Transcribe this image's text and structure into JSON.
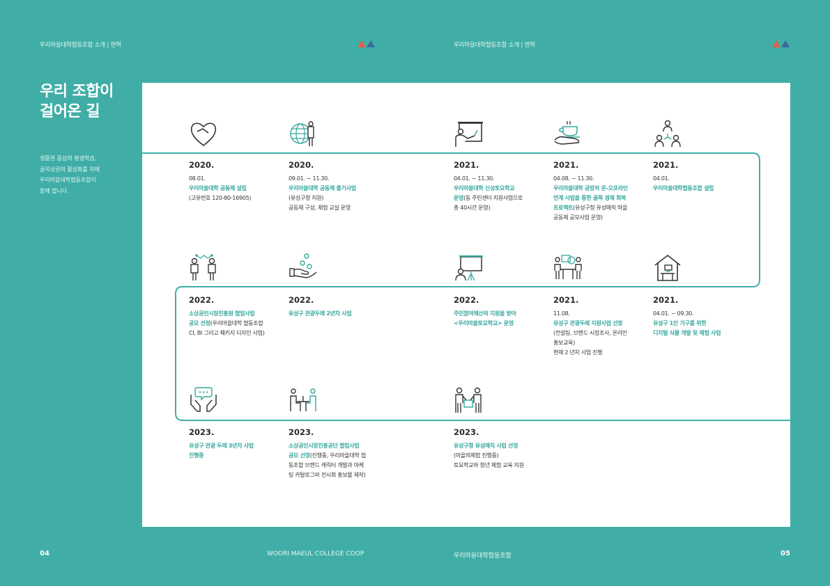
{
  "header": {
    "left": "우리마을대학협동조합 소개  |  연혁",
    "right": "우리마을대학협동조합 소개  |  연혁",
    "colors": {
      "triangle_red": "#e0604f",
      "triangle_blue": "#3b6b99"
    }
  },
  "title": [
    "우리 조합이",
    "걸어온 길"
  ],
  "intro": [
    "생활권 중심의 평생학습,",
    "골목상권의 활성화를 위해",
    "우리마을대학협동조합이",
    "함께 합니다."
  ],
  "colors": {
    "background": "#40aea6",
    "accent": "#36a89d"
  },
  "timeline": [
    {
      "icon": "handshake-heart-icon",
      "year": "2020.",
      "lines": [
        [
          [
            "08.01.",
            false
          ]
        ],
        [
          [
            "우리마을대학 공동체 설립",
            true
          ]
        ],
        [
          [
            "(고유번호 120-80-16905)",
            false
          ]
        ]
      ]
    },
    {
      "icon": "globe-person-icon",
      "year": "2020.",
      "lines": [
        [
          [
            "09.01. ~ 11.30.",
            false
          ]
        ],
        [
          [
            "우리마을대학 공동체 줄기사업",
            true
          ]
        ],
        [
          [
            "(유성구청 지원)",
            false
          ]
        ],
        [
          [
            "공동체 구성, 체험 교실 운영",
            false
          ]
        ]
      ]
    },
    {
      "icon": "presentation-icon",
      "year": "2021.",
      "lines": [
        [
          [
            "04.01. ~ 11.30.",
            false
          ]
        ],
        [
          [
            "우리마을대학 신성토요학교",
            true
          ]
        ],
        [
          [
            "운영",
            true
          ],
          [
            "(동 주민센터 지원사업으로",
            false
          ]
        ],
        [
          [
            "총 40시간 운영)",
            false
          ]
        ]
      ]
    },
    {
      "icon": "coffee-hand-icon",
      "year": "2021.",
      "lines": [
        [
          [
            "04.08. ~ 11.30.",
            false
          ]
        ],
        [
          [
            "우리마을대학 공방의 온-오프라인",
            true
          ]
        ],
        [
          [
            "연계 사업을 통한 골목 경제 회복",
            true
          ]
        ],
        [
          [
            "프로젝트",
            true
          ],
          [
            "(유성구청 유성매직 마을",
            false
          ]
        ],
        [
          [
            "공동체 공모사업 운영)",
            false
          ]
        ]
      ]
    },
    {
      "icon": "network-people-icon",
      "year": "2021.",
      "lines": [
        [
          [
            "04.01.",
            false
          ]
        ],
        [
          [
            "우리마을대학협동조합 설립",
            true
          ]
        ]
      ]
    },
    {
      "icon": "collaboration-icon",
      "year": "2022.",
      "lines": [
        [
          [
            "소상공인시장진흥원 협업사업",
            true
          ]
        ],
        [
          [
            "공모 선정",
            true
          ],
          [
            "(우리마을대학 협동조합",
            false
          ]
        ],
        [
          [
            "CI, BI 그리고 패키지 디자인 사업)",
            false
          ]
        ]
      ]
    },
    {
      "icon": "hand-coins-icon",
      "year": "2022.",
      "lines": [
        [
          [
            "유성구 관광두레 2년차 사업",
            true
          ]
        ]
      ]
    },
    {
      "icon": "board-presenter-icon",
      "year": "2022.",
      "lines": [
        [
          [
            "주민참여예산의 지원을 받아",
            true
          ]
        ],
        [
          [
            "<우리마을토요학교> 운영",
            true
          ]
        ]
      ]
    },
    {
      "icon": "meeting-icon",
      "year": "2021.",
      "lines": [
        [
          [
            "11.08.",
            false
          ]
        ],
        [
          [
            "유성구 관광두레 지원사업 선정",
            true
          ]
        ],
        [
          [
            "(컨설팅, 브랜드 시장조사, 온라인",
            false
          ]
        ],
        [
          [
            "홍보교육)",
            false
          ]
        ],
        [
          [
            "현재 2 년차 사업 진행",
            false
          ]
        ]
      ]
    },
    {
      "icon": "home-desk-icon",
      "year": "2021.",
      "lines": [
        [
          [
            "04.01. ~ 09.30.",
            false
          ]
        ],
        [
          [
            "유성구 1인 가구를 위한",
            true
          ]
        ],
        [
          [
            "디지털 식물 개발 및 체험 사업",
            true
          ]
        ]
      ]
    },
    {
      "icon": "hands-speech-icon",
      "year": "2023.",
      "lines": [
        [
          [
            "유성구 관광 두레 3년차 사업",
            true
          ]
        ],
        [
          [
            "진행중",
            true
          ]
        ]
      ]
    },
    {
      "icon": "table-meeting-icon",
      "year": "2023.",
      "lines": [
        [
          [
            "소상공인시장진흥공단 협업사업",
            true
          ]
        ],
        [
          [
            "공모 선정",
            true
          ],
          [
            "(진행중, 우리마을대학 협",
            false
          ]
        ],
        [
          [
            "동조합 브랜드 캐릭터 개발과 마케",
            false
          ]
        ],
        [
          [
            "팅 카탈로그와 전시회 홍보물 제작)",
            false
          ]
        ]
      ]
    },
    {
      "icon": "people-exchange-icon",
      "year": "2023.",
      "lines": [
        [
          [
            "유성구청 유성매직 사업 선정",
            true
          ]
        ],
        [
          [
            "(마을의체험 진행중)",
            false
          ]
        ],
        [
          [
            "토요학교와 청년 체험 교육 지원",
            false
          ]
        ]
      ]
    }
  ],
  "footer": {
    "left_page": "04",
    "left_text": "WOORI MAEUL COLLEGE COOP",
    "right_text": "우리마을대학협동조합",
    "right_page": "05"
  }
}
